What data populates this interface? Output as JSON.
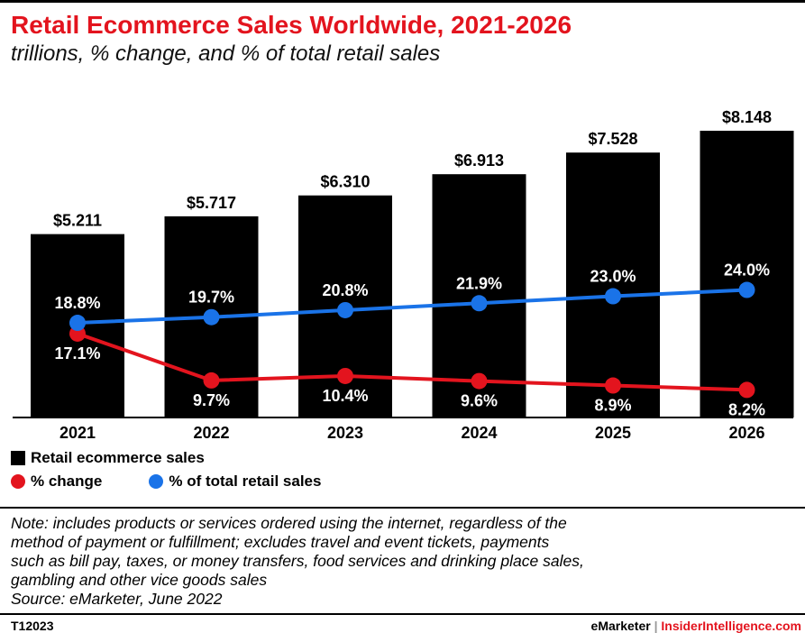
{
  "header": {
    "title": "Retail Ecommerce Sales Worldwide, 2021-2026",
    "subtitle": "trillions, % change, and % of total retail sales",
    "title_color": "#e3141e"
  },
  "chart_data": {
    "type": "bar",
    "categories": [
      "2021",
      "2022",
      "2023",
      "2024",
      "2025",
      "2026"
    ],
    "series": [
      {
        "name": "Retail ecommerce sales",
        "type": "bar",
        "color": "#000000",
        "values": [
          5.211,
          5.717,
          6.31,
          6.913,
          7.528,
          8.148
        ],
        "labels": [
          "$5.211",
          "$5.717",
          "$6.310",
          "$6.913",
          "$7.528",
          "$8.148"
        ]
      },
      {
        "name": "% change",
        "type": "line",
        "color": "#e3141e",
        "values": [
          17.1,
          9.7,
          10.4,
          9.6,
          8.9,
          8.2
        ],
        "labels": [
          "17.1%",
          "9.7%",
          "10.4%",
          "9.6%",
          "8.9%",
          "8.2%"
        ]
      },
      {
        "name": "% of total retail sales",
        "type": "line",
        "color": "#1a73e8",
        "values": [
          18.8,
          19.7,
          20.8,
          21.9,
          23.0,
          24.0
        ],
        "labels": [
          "18.8%",
          "19.7%",
          "20.8%",
          "21.9%",
          "23.0%",
          "24.0%"
        ]
      }
    ],
    "grid": false,
    "legend_position": "bottom-left"
  },
  "legend": {
    "items": [
      {
        "label": "Retail ecommerce sales",
        "color": "#000000",
        "shape": "square"
      },
      {
        "label": "% change",
        "color": "#e3141e",
        "shape": "circle"
      },
      {
        "label": "% of total retail sales",
        "color": "#1a73e8",
        "shape": "circle"
      }
    ]
  },
  "footer": {
    "note": "Note: includes products or services ordered using the internet, regardless of the\nmethod of payment or fulfillment; excludes travel and event tickets, payments\nsuch as bill pay, taxes, or money transfers, food services and drinking place sales,\ngambling and other vice goods sales\nSource: eMarketer, June 2022",
    "code": "T12023",
    "brand_left": "eMarketer",
    "brand_sep": " | ",
    "brand_right": "InsiderIntelligence.com",
    "brand_color": "#e3141e"
  }
}
